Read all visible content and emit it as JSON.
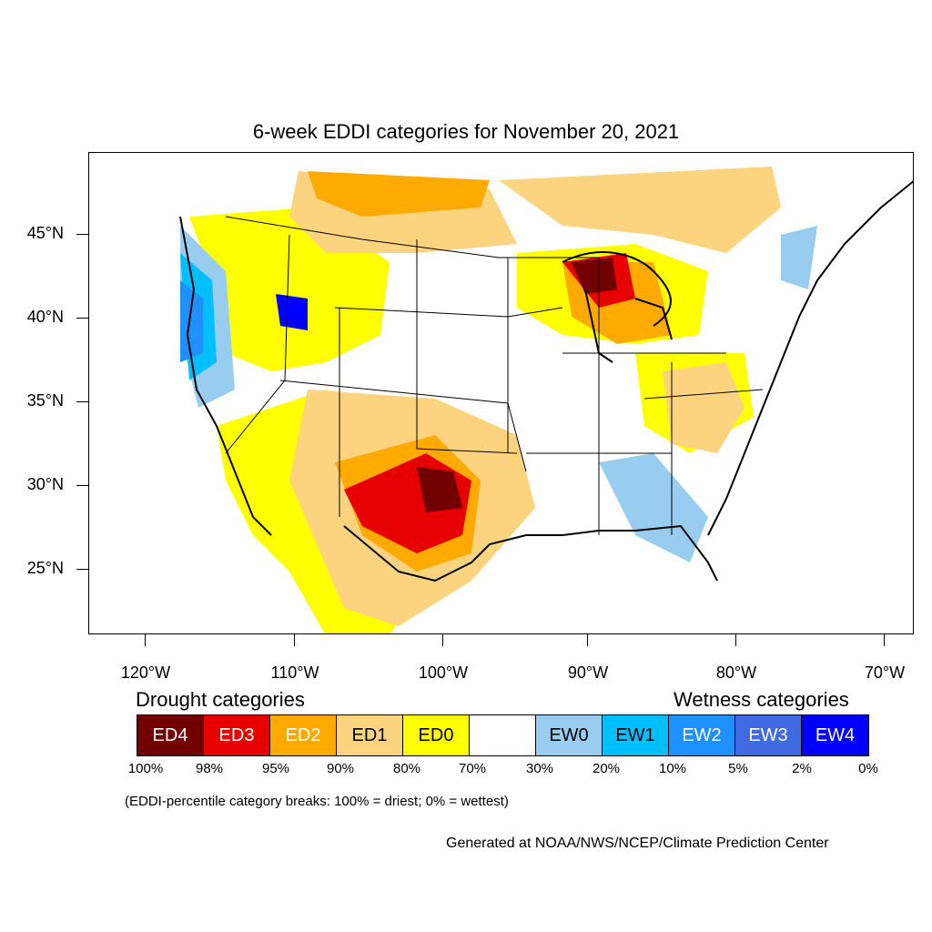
{
  "title": "6-week EDDI categories for November 20, 2021",
  "map": {
    "lat_labels": [
      "45°N",
      "40°N",
      "35°N",
      "30°N",
      "25°N"
    ],
    "lon_labels": [
      "120°W",
      "110°W",
      "100°W",
      "90°W",
      "80°W",
      "70°W"
    ]
  },
  "legend": {
    "drought_heading": "Drought categories",
    "wetness_heading": "Wetness categories",
    "categories": [
      {
        "label": "ED4",
        "color": "#730000",
        "text_color": "#ffffff"
      },
      {
        "label": "ED3",
        "color": "#e60000",
        "text_color": "#ffffff"
      },
      {
        "label": "ED2",
        "color": "#ffaa00",
        "text_color": "#ffffff"
      },
      {
        "label": "ED1",
        "color": "#fcd37f",
        "text_color": "#000000"
      },
      {
        "label": "ED0",
        "color": "#ffff00",
        "text_color": "#000000"
      },
      {
        "label": "",
        "color": "#ffffff",
        "text_color": "#000000"
      },
      {
        "label": "EW0",
        "color": "#98cdf0",
        "text_color": "#000000"
      },
      {
        "label": "EW1",
        "color": "#00bfff",
        "text_color": "#000000"
      },
      {
        "label": "EW2",
        "color": "#1e90ff",
        "text_color": "#ffffff"
      },
      {
        "label": "EW3",
        "color": "#4169e1",
        "text_color": "#ffffff"
      },
      {
        "label": "EW4",
        "color": "#0000ff",
        "text_color": "#ffffff"
      }
    ],
    "breaks": [
      "100%",
      "98%",
      "95%",
      "90%",
      "80%",
      "70%",
      "30%",
      "20%",
      "10%",
      "5%",
      "2%",
      "0%"
    ]
  },
  "note": "(EDDI-percentile category breaks: 100% = driest; 0% = wettest)",
  "credit": "Generated at NOAA/NWS/NCEP/Climate Prediction Center"
}
